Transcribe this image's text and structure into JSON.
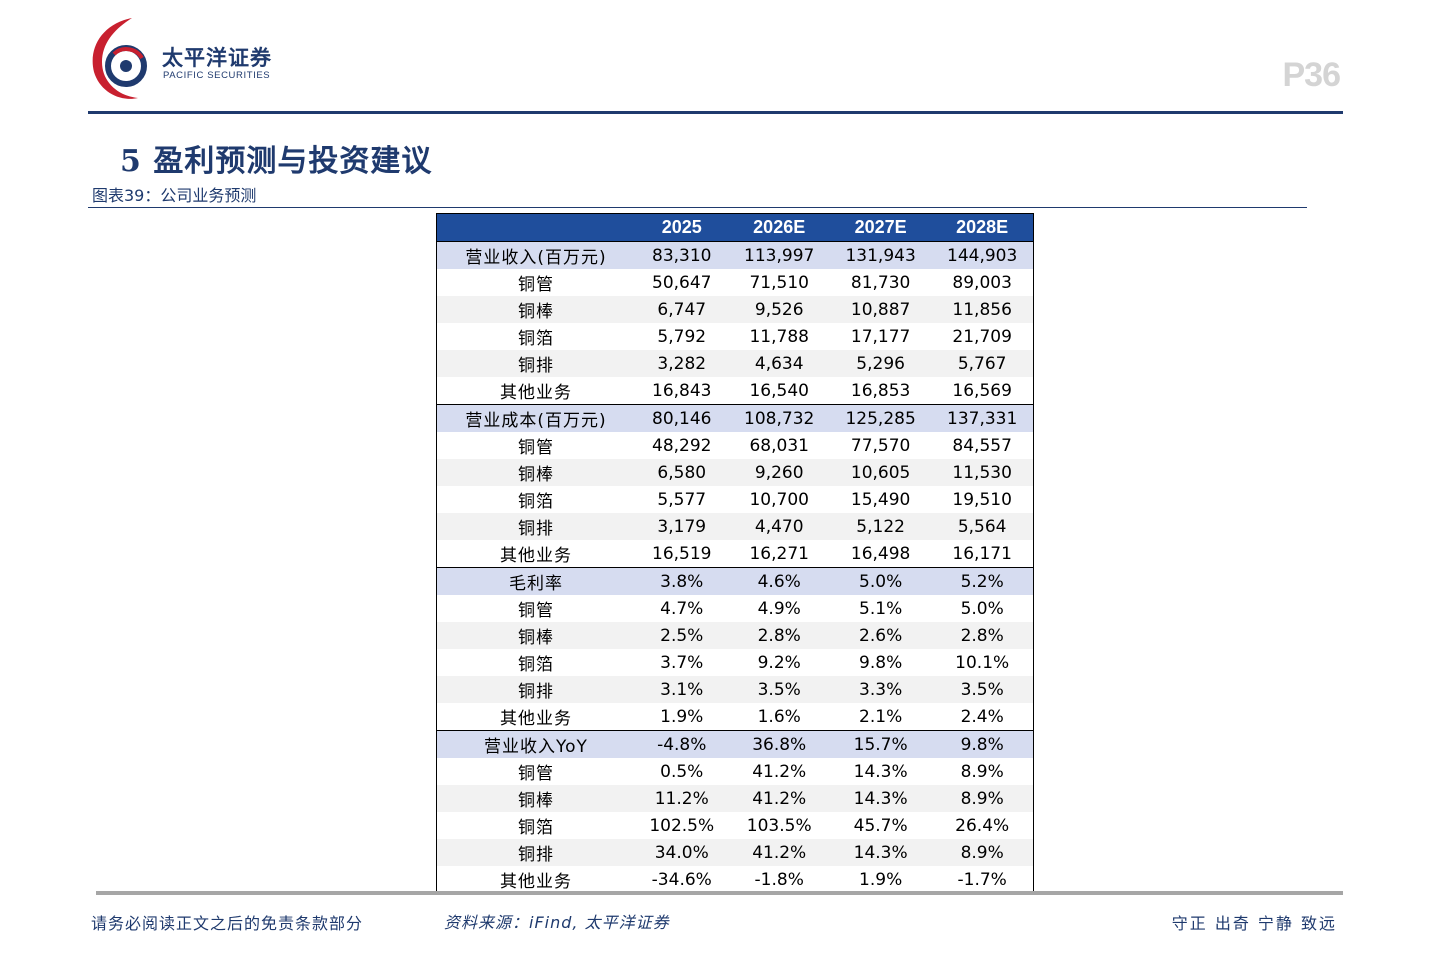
{
  "header": {
    "logo_cn": "太平洋证券",
    "logo_en": "PACIFIC SECURITIES",
    "page_number": "P36"
  },
  "section_title": "5 盈利预测与投资建议",
  "figure_caption": "图表39：公司业务预测",
  "table": {
    "columns": [
      "",
      "2025",
      "2026E",
      "2027E",
      "2028E"
    ],
    "rows": [
      {
        "label": "营业收入(百万元)",
        "values": [
          "83,310",
          "113,997",
          "131,943",
          "144,903"
        ],
        "group": true
      },
      {
        "label": "铜管",
        "values": [
          "50,647",
          "71,510",
          "81,730",
          "89,003"
        ]
      },
      {
        "label": "铜棒",
        "values": [
          "6,747",
          "9,526",
          "10,887",
          "11,856"
        ]
      },
      {
        "label": "铜箔",
        "values": [
          "5,792",
          "11,788",
          "17,177",
          "21,709"
        ]
      },
      {
        "label": "铜排",
        "values": [
          "3,282",
          "4,634",
          "5,296",
          "5,767"
        ]
      },
      {
        "label": "其他业务",
        "values": [
          "16,843",
          "16,540",
          "16,853",
          "16,569"
        ]
      },
      {
        "label": "营业成本(百万元)",
        "values": [
          "80,146",
          "108,732",
          "125,285",
          "137,331"
        ],
        "group": true
      },
      {
        "label": "铜管",
        "values": [
          "48,292",
          "68,031",
          "77,570",
          "84,557"
        ]
      },
      {
        "label": "铜棒",
        "values": [
          "6,580",
          "9,260",
          "10,605",
          "11,530"
        ]
      },
      {
        "label": "铜箔",
        "values": [
          "5,577",
          "10,700",
          "15,490",
          "19,510"
        ]
      },
      {
        "label": "铜排",
        "values": [
          "3,179",
          "4,470",
          "5,122",
          "5,564"
        ]
      },
      {
        "label": "其他业务",
        "values": [
          "16,519",
          "16,271",
          "16,498",
          "16,171"
        ]
      },
      {
        "label": "毛利率",
        "values": [
          "3.8%",
          "4.6%",
          "5.0%",
          "5.2%"
        ],
        "group": true
      },
      {
        "label": "铜管",
        "values": [
          "4.7%",
          "4.9%",
          "5.1%",
          "5.0%"
        ]
      },
      {
        "label": "铜棒",
        "values": [
          "2.5%",
          "2.8%",
          "2.6%",
          "2.8%"
        ]
      },
      {
        "label": "铜箔",
        "values": [
          "3.7%",
          "9.2%",
          "9.8%",
          "10.1%"
        ]
      },
      {
        "label": "铜排",
        "values": [
          "3.1%",
          "3.5%",
          "3.3%",
          "3.5%"
        ]
      },
      {
        "label": "其他业务",
        "values": [
          "1.9%",
          "1.6%",
          "2.1%",
          "2.4%"
        ]
      },
      {
        "label": "营业收入YoY",
        "values": [
          "-4.8%",
          "36.8%",
          "15.7%",
          "9.8%"
        ],
        "group": true
      },
      {
        "label": "铜管",
        "values": [
          "0.5%",
          "41.2%",
          "14.3%",
          "8.9%"
        ]
      },
      {
        "label": "铜棒",
        "values": [
          "11.2%",
          "41.2%",
          "14.3%",
          "8.9%"
        ]
      },
      {
        "label": "铜箔",
        "values": [
          "102.5%",
          "103.5%",
          "45.7%",
          "26.4%"
        ]
      },
      {
        "label": "铜排",
        "values": [
          "34.0%",
          "41.2%",
          "14.3%",
          "8.9%"
        ]
      },
      {
        "label": "其他业务",
        "values": [
          "-34.6%",
          "-1.8%",
          "1.9%",
          "-1.7%"
        ]
      }
    ]
  },
  "footer": {
    "disclaimer": "请务必阅读正文之后的免责条款部分",
    "source": "资料来源：iFind, 太平洋证券",
    "motto": "守正 出奇 宁静 致远"
  },
  "colors": {
    "brand_navy": "#1f3a6e",
    "header_blue": "#1f4e9c",
    "group_row": "#d6dcf0",
    "logo_red": "#c8202f"
  }
}
